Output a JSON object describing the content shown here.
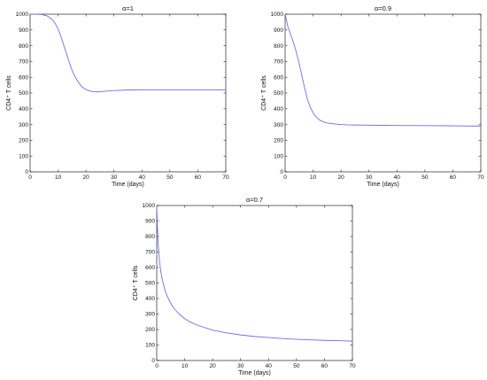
{
  "colors": {
    "curve": "#6e6ee6",
    "axis": "#000000",
    "background": "#ffffff"
  },
  "chart_data": [
    {
      "type": "line",
      "title": "α=1",
      "xlabel": "Time (days)",
      "ylabel": "CD4⁺ T cells",
      "xlim": [
        0,
        70
      ],
      "ylim": [
        0,
        1000
      ],
      "xticks": [
        0,
        10,
        20,
        30,
        40,
        50,
        60,
        70
      ],
      "yticks": [
        0,
        100,
        200,
        300,
        400,
        500,
        600,
        700,
        800,
        900,
        1000
      ],
      "grid": false,
      "series": [
        {
          "x": [
            0,
            2,
            4,
            6,
            8,
            9,
            10,
            11,
            12,
            13,
            14,
            15,
            16,
            17,
            18,
            19,
            20,
            21,
            22,
            23,
            24,
            25,
            26,
            28,
            30,
            35,
            40,
            50,
            60,
            70
          ],
          "y": [
            1000,
            1000,
            998,
            990,
            965,
            940,
            905,
            860,
            805,
            750,
            695,
            645,
            605,
            575,
            550,
            533,
            522,
            515,
            510,
            508,
            507,
            508,
            510,
            513,
            516,
            519,
            520,
            520,
            520,
            520
          ]
        }
      ]
    },
    {
      "type": "line",
      "title": "α=0.9",
      "xlabel": "Time (days)",
      "ylabel": "CD4⁺ T cells",
      "xlim": [
        0,
        70
      ],
      "ylim": [
        0,
        1000
      ],
      "xticks": [
        0,
        10,
        20,
        30,
        40,
        50,
        60,
        70
      ],
      "yticks": [
        0,
        100,
        200,
        300,
        400,
        500,
        600,
        700,
        800,
        900,
        1000
      ],
      "grid": false,
      "series": [
        {
          "x": [
            0,
            0.5,
            1,
            2,
            3,
            4,
            5,
            6,
            7,
            8,
            9,
            10,
            11,
            12,
            13,
            14,
            15,
            16,
            18,
            20,
            22,
            25,
            30,
            35,
            40,
            50,
            60,
            70
          ],
          "y": [
            1000,
            960,
            920,
            870,
            820,
            760,
            690,
            610,
            530,
            460,
            410,
            375,
            350,
            333,
            322,
            315,
            310,
            307,
            303,
            300,
            298,
            297,
            296,
            295,
            294,
            293,
            292,
            290
          ]
        }
      ]
    },
    {
      "type": "line",
      "title": "α=0.7",
      "xlabel": "Time (days)",
      "ylabel": "CD4⁺ T cells",
      "xlim": [
        0,
        70
      ],
      "ylim": [
        0,
        1000
      ],
      "xticks": [
        0,
        10,
        20,
        30,
        40,
        50,
        60,
        70
      ],
      "yticks": [
        0,
        100,
        200,
        300,
        400,
        500,
        600,
        700,
        800,
        900,
        1000
      ],
      "grid": false,
      "series": [
        {
          "x": [
            0,
            0.2,
            0.5,
            1,
            1.5,
            2,
            3,
            4,
            5,
            6,
            8,
            10,
            12,
            15,
            20,
            25,
            30,
            35,
            40,
            45,
            50,
            55,
            60,
            65,
            70
          ],
          "y": [
            1000,
            880,
            760,
            640,
            570,
            520,
            450,
            405,
            370,
            340,
            300,
            270,
            248,
            225,
            196,
            178,
            165,
            155,
            148,
            142,
            137,
            133,
            130,
            128,
            125
          ]
        }
      ]
    }
  ]
}
